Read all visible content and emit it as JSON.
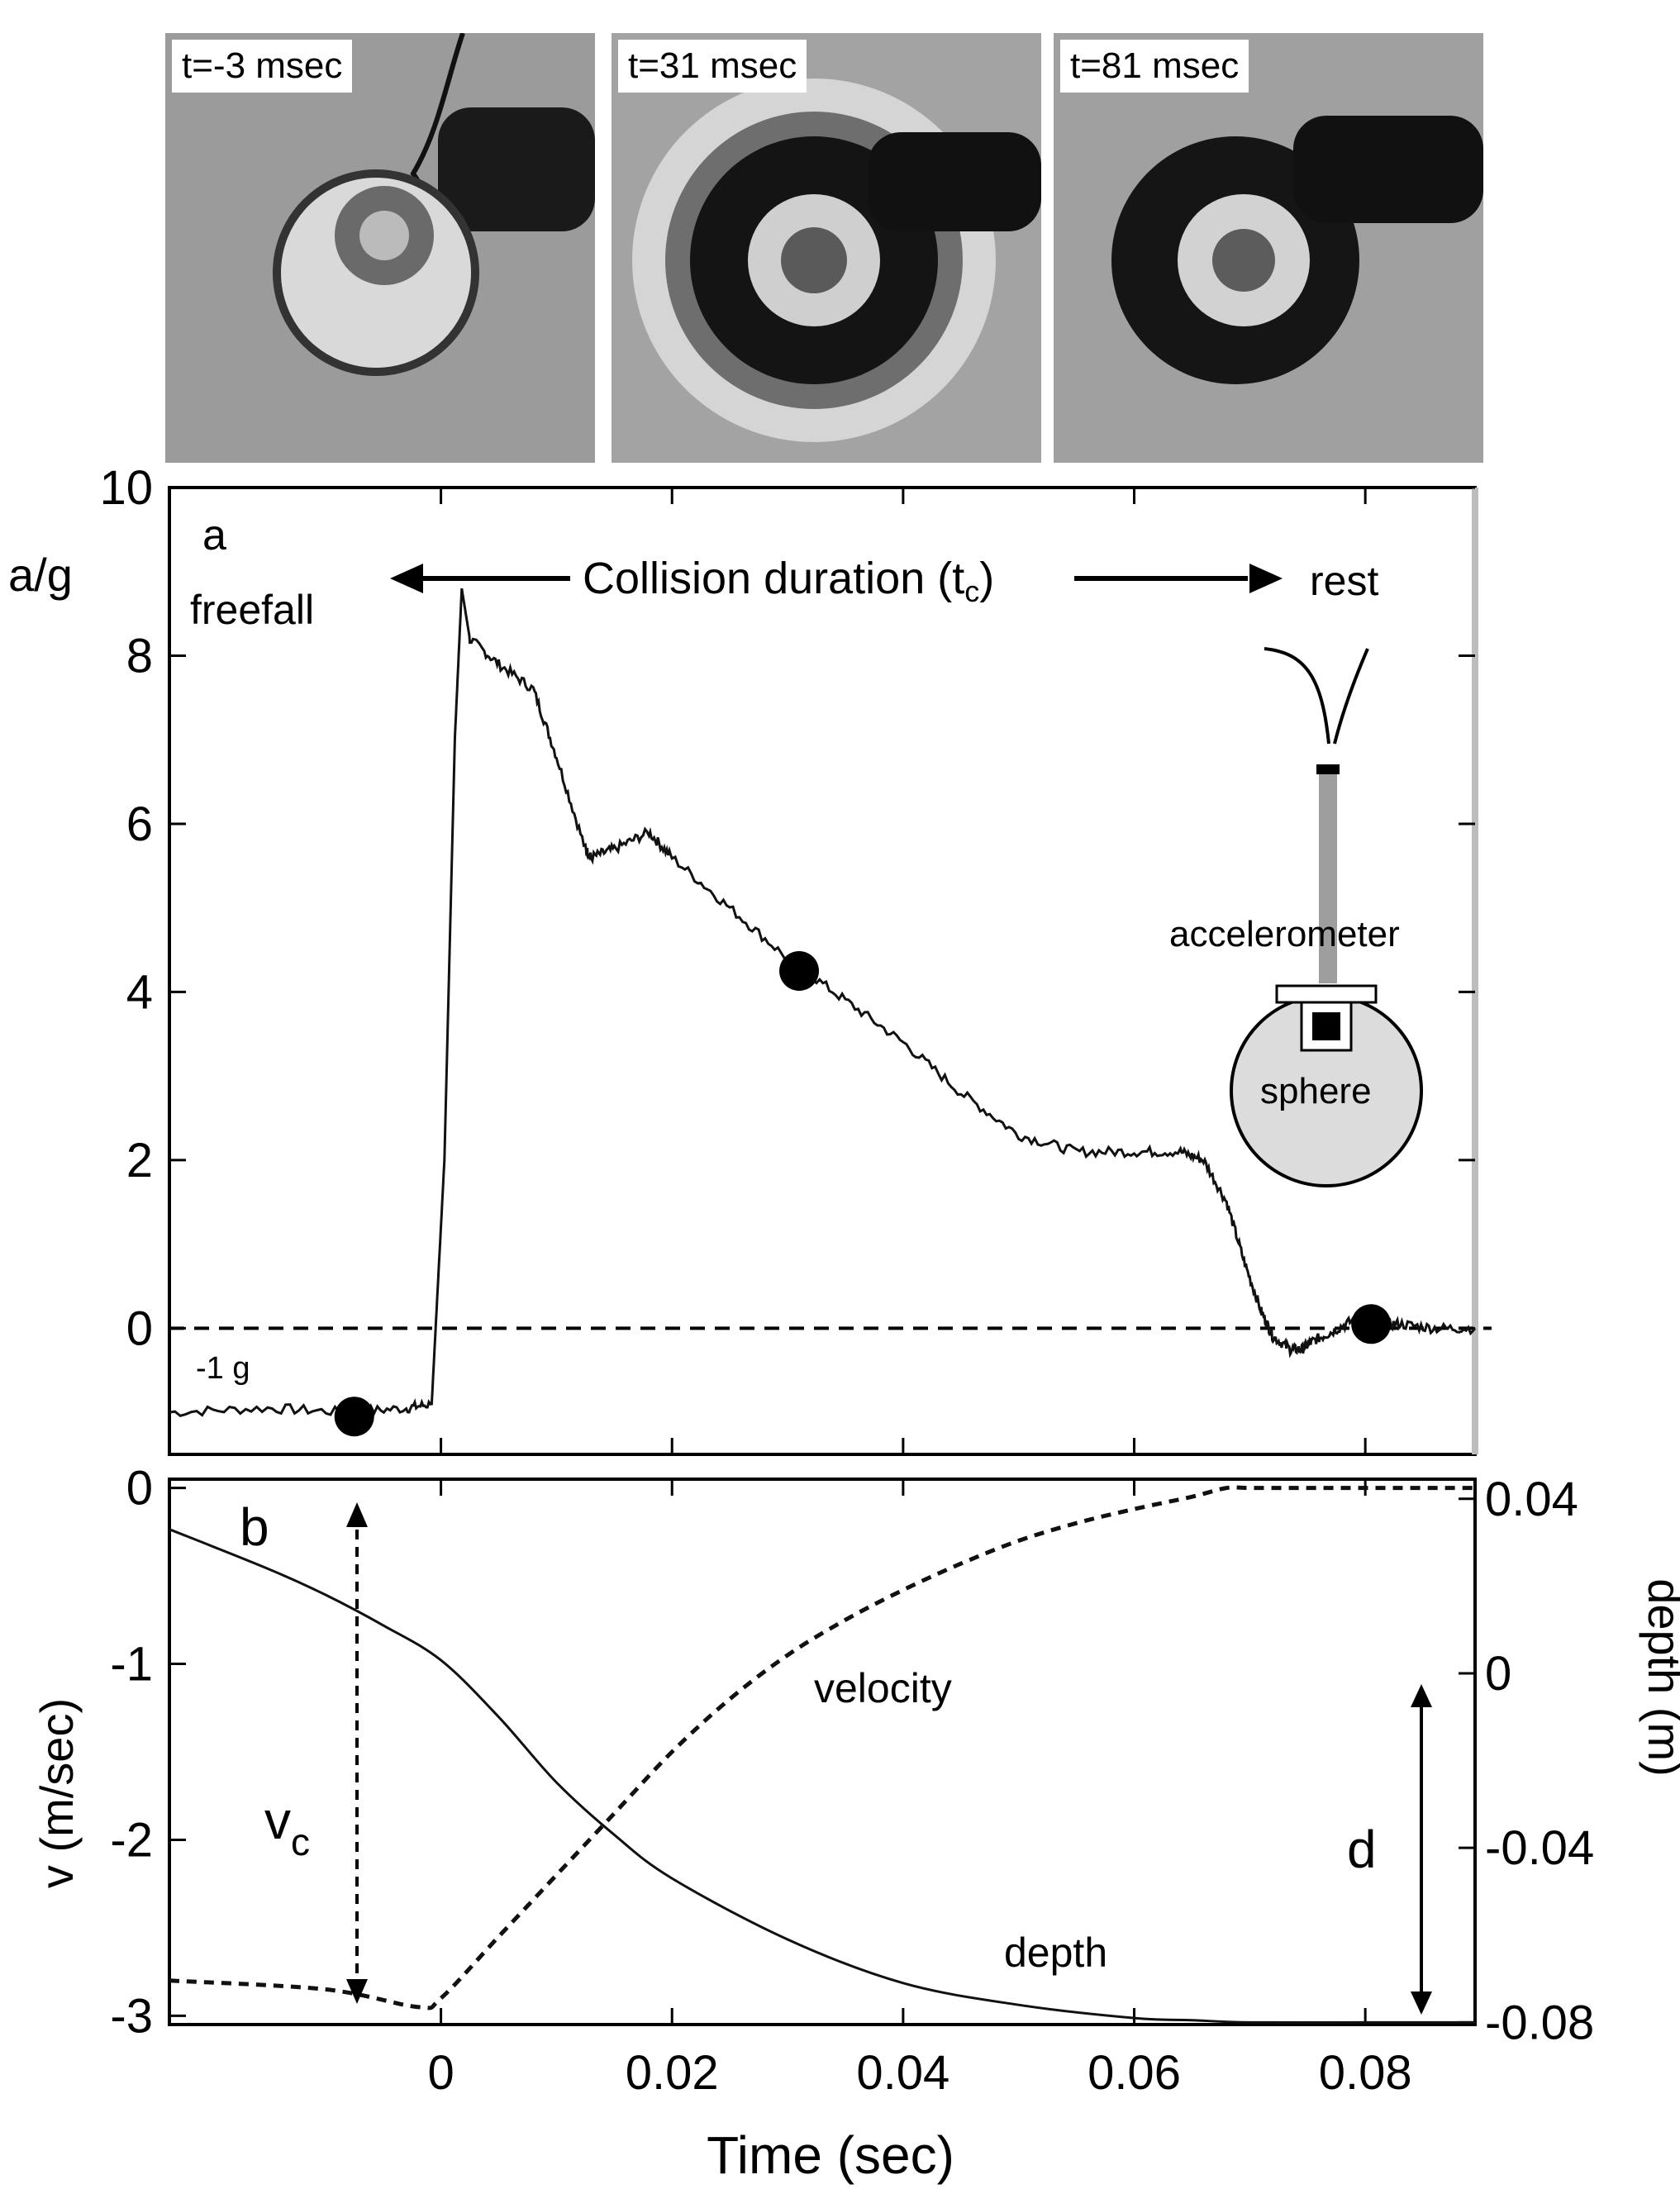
{
  "photos": [
    {
      "label": "t=-3 msec"
    },
    {
      "label": "t=31 msec"
    },
    {
      "label": "t=81 msec"
    }
  ],
  "chart_data": [
    {
      "type": "line",
      "panel_label": "a",
      "ylabel": "a/g",
      "xlim": [
        -0.0235,
        0.0895
      ],
      "ylim": [
        -1.5,
        10
      ],
      "yticks": [
        "0",
        "2",
        "4",
        "6",
        "8",
        "10"
      ],
      "annotations": {
        "freefall": "freefall",
        "collision": "Collision duration (t",
        "collision_sub": "c",
        "collision_close": ")",
        "rest": "rest",
        "minus_1g": "-1 g",
        "accelerometer": "accelerometer",
        "sphere": "sphere"
      },
      "series": [
        {
          "x": [
            -0.0235,
            -0.015,
            -0.008,
            -0.003,
            -0.0008,
            0.0003,
            0.0012,
            0.0018,
            0.0025,
            0.005,
            0.008,
            0.01,
            0.0125,
            0.013,
            0.015,
            0.018,
            0.02,
            0.025,
            0.03,
            0.035,
            0.04,
            0.045,
            0.05,
            0.055,
            0.06,
            0.064,
            0.066,
            0.068,
            0.0695,
            0.071,
            0.072,
            0.0735,
            0.0745,
            0.0755,
            0.077,
            0.079,
            0.081,
            0.083,
            0.086,
            0.0895
          ],
          "y": [
            -1.0,
            -0.95,
            -1.0,
            -0.95,
            -0.9,
            2.0,
            7.0,
            8.8,
            8.2,
            7.9,
            7.6,
            6.8,
            5.7,
            5.6,
            5.7,
            5.9,
            5.6,
            5.0,
            4.4,
            3.9,
            3.4,
            2.8,
            2.3,
            2.1,
            2.1,
            2.1,
            2.0,
            1.5,
            0.8,
            0.2,
            -0.1,
            -0.25,
            -0.25,
            -0.15,
            -0.05,
            0.1,
            0.05,
            0.05,
            0.0,
            0.0
          ]
        }
      ],
      "markers": [
        {
          "x": -0.0075,
          "y": -1.05
        },
        {
          "x": 0.031,
          "y": 4.25
        },
        {
          "x": 0.0805,
          "y": 0.05
        }
      ],
      "reference_line_y": 0
    },
    {
      "type": "line",
      "panel_label": "b",
      "xlabel": "Time (sec)",
      "ylabel": "v (m/sec)",
      "y2label": "depth (m)",
      "xlim": [
        -0.0235,
        0.0895
      ],
      "ylim": [
        -3.05,
        0.05
      ],
      "y2lim": [
        -0.0805,
        0.0445
      ],
      "xticks": [
        "0",
        "0.02",
        "0.04",
        "0.06",
        "0.08"
      ],
      "yticks": [
        "0",
        "-1",
        "-2",
        "-3"
      ],
      "y2ticks": [
        "0.04",
        "0",
        "-0.04",
        "-0.08"
      ],
      "annotations": {
        "velocity": "velocity",
        "depth": "depth",
        "vc": "v",
        "vc_sub": "c",
        "d": "d"
      },
      "series": [
        {
          "name": "velocity",
          "x": [
            -0.0235,
            -0.01,
            -0.002,
            0.0,
            0.005,
            0.01,
            0.015,
            0.02,
            0.025,
            0.03,
            0.035,
            0.04,
            0.045,
            0.05,
            0.055,
            0.06,
            0.065,
            0.068,
            0.07,
            0.075,
            0.08,
            0.0895
          ],
          "y": [
            -2.8,
            -2.85,
            -2.95,
            -2.9,
            -2.55,
            -2.2,
            -1.85,
            -1.5,
            -1.2,
            -0.95,
            -0.75,
            -0.58,
            -0.43,
            -0.3,
            -0.2,
            -0.12,
            -0.05,
            0.0,
            0.0,
            0.0,
            0.0,
            0.0
          ]
        },
        {
          "name": "depth",
          "axis": "right",
          "x": [
            -0.0235,
            -0.015,
            -0.01,
            -0.005,
            0.0,
            0.005,
            0.01,
            0.015,
            0.02,
            0.03,
            0.04,
            0.05,
            0.06,
            0.065,
            0.07,
            0.08,
            0.0895
          ],
          "y2": [
            0.033,
            0.024,
            0.018,
            0.011,
            0.003,
            -0.01,
            -0.025,
            -0.037,
            -0.047,
            -0.061,
            -0.071,
            -0.076,
            -0.079,
            -0.0795,
            -0.08,
            -0.08,
            -0.08
          ]
        }
      ]
    }
  ]
}
